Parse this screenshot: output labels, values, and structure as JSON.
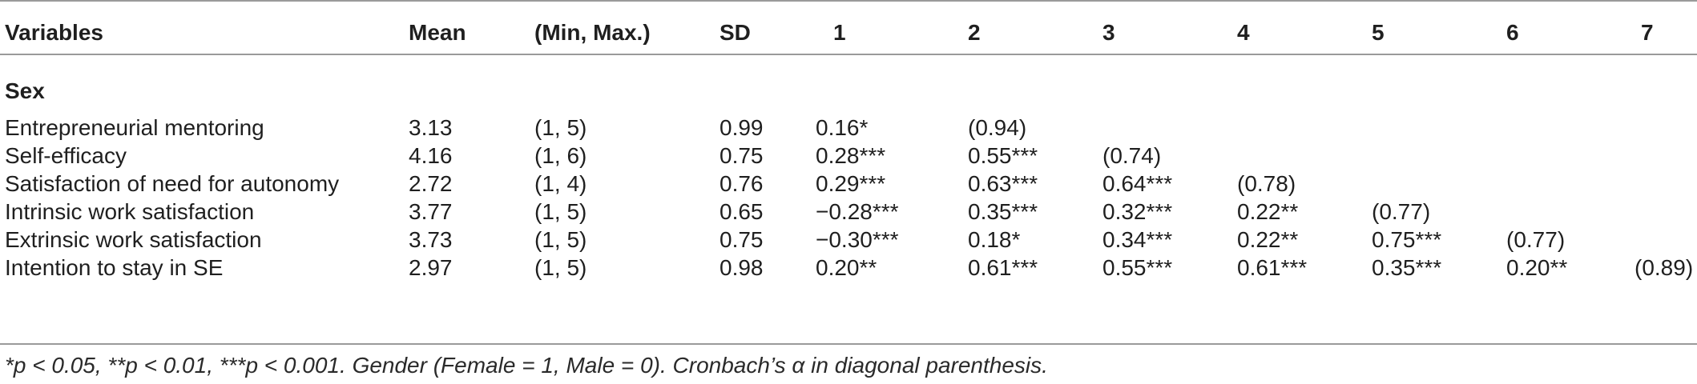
{
  "headers": [
    "Variables",
    "Mean",
    "(Min, Max.)",
    "SD",
    "1",
    "2",
    "3",
    "4",
    "5",
    "6",
    "7"
  ],
  "section_label": "Sex",
  "rows": [
    {
      "variable": "Entrepreneurial mentoring",
      "mean": "3.13",
      "range": "(1, 5)",
      "sd": "0.99",
      "c1": "0.16*",
      "c2": "(0.94)",
      "c3": "",
      "c4": "",
      "c5": "",
      "c6": "",
      "c7": ""
    },
    {
      "variable": "Self-efficacy",
      "mean": "4.16",
      "range": "(1, 6)",
      "sd": "0.75",
      "c1": "0.28***",
      "c2": "0.55***",
      "c3": "(0.74)",
      "c4": "",
      "c5": "",
      "c6": "",
      "c7": ""
    },
    {
      "variable": "Satisfaction of need for autonomy",
      "mean": "2.72",
      "range": "(1, 4)",
      "sd": "0.76",
      "c1": "0.29***",
      "c2": "0.63***",
      "c3": "0.64***",
      "c4": "(0.78)",
      "c5": "",
      "c6": "",
      "c7": ""
    },
    {
      "variable": "Intrinsic work satisfaction",
      "mean": "3.77",
      "range": "(1, 5)",
      "sd": "0.65",
      "c1": "−0.28***",
      "c2": "0.35***",
      "c3": "0.32***",
      "c4": "0.22**",
      "c5": "(0.77)",
      "c6": "",
      "c7": ""
    },
    {
      "variable": "Extrinsic work satisfaction",
      "mean": "3.73",
      "range": "(1, 5)",
      "sd": "0.75",
      "c1": "−0.30***",
      "c2": "0.18*",
      "c3": "0.34***",
      "c4": "0.22**",
      "c5": "0.75***",
      "c6": "(0.77)",
      "c7": ""
    },
    {
      "variable": "Intention to stay in SE",
      "mean": "2.97",
      "range": "(1, 5)",
      "sd": "0.98",
      "c1": "0.20**",
      "c2": "0.61***",
      "c3": "0.55***",
      "c4": "0.61***",
      "c5": "0.35***",
      "c6": "0.20**",
      "c7": "(0.89)"
    }
  ],
  "footnote": "*p < 0.05, **p < 0.01, ***p < 0.001. Gender (Female = 1, Male = 0). Cronbach’s α in diagonal parenthesis."
}
